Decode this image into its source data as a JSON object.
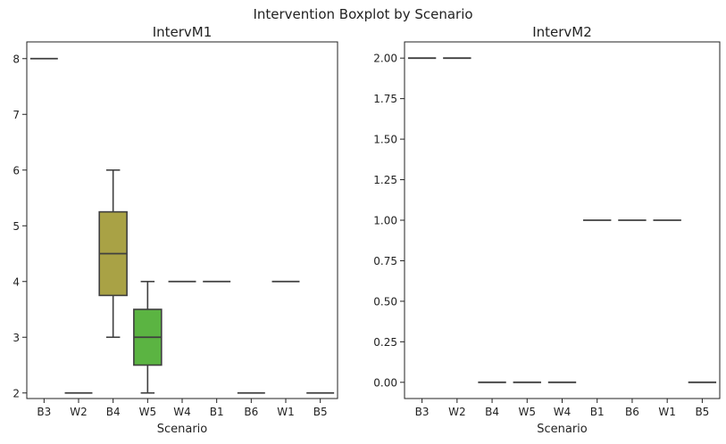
{
  "figure_title": "Intervention Boxplot by Scenario",
  "chart_data": [
    {
      "type": "box",
      "title": "IntervM1",
      "xlabel": "Scenario",
      "ylabel": "",
      "categories": [
        "B3",
        "W2",
        "B4",
        "W5",
        "W4",
        "B1",
        "B6",
        "W1",
        "B5"
      ],
      "colors": [
        "#3274a1",
        "#e1812c",
        "#a9a245",
        "#5bb442",
        "#4cad84",
        "#3ba3ec",
        "#a88bc0",
        "#cc7ab4",
        "#d66f80"
      ],
      "boxes": [
        {
          "category": "B3",
          "min": 8,
          "q1": 8,
          "median": 8,
          "q3": 8,
          "max": 8
        },
        {
          "category": "W2",
          "min": 2,
          "q1": 2,
          "median": 2,
          "q3": 2,
          "max": 2
        },
        {
          "category": "B4",
          "min": 3,
          "q1": 3.75,
          "median": 4.5,
          "q3": 5.25,
          "max": 6
        },
        {
          "category": "W5",
          "min": 2,
          "q1": 2.5,
          "median": 3,
          "q3": 3.5,
          "max": 4
        },
        {
          "category": "W4",
          "min": 4,
          "q1": 4,
          "median": 4,
          "q3": 4,
          "max": 4
        },
        {
          "category": "B1",
          "min": 4,
          "q1": 4,
          "median": 4,
          "q3": 4,
          "max": 4
        },
        {
          "category": "B6",
          "min": 2,
          "q1": 2,
          "median": 2,
          "q3": 2,
          "max": 2
        },
        {
          "category": "W1",
          "min": 4,
          "q1": 4,
          "median": 4,
          "q3": 4,
          "max": 4
        },
        {
          "category": "B5",
          "min": 2,
          "q1": 2,
          "median": 2,
          "q3": 2,
          "max": 2
        }
      ],
      "ylim": [
        1.9,
        8.3
      ],
      "yticks": [
        2,
        3,
        4,
        5,
        6,
        7,
        8
      ],
      "ytick_labels": [
        "2",
        "3",
        "4",
        "5",
        "6",
        "7",
        "8"
      ],
      "grid": false,
      "legend": "none"
    },
    {
      "type": "box",
      "title": "IntervM2",
      "xlabel": "Scenario",
      "ylabel": "",
      "categories": [
        "B3",
        "W2",
        "B4",
        "W5",
        "W4",
        "B1",
        "B6",
        "W1",
        "B5"
      ],
      "colors": [
        "#3274a1",
        "#e1812c",
        "#3a923a",
        "#c03d3e",
        "#9372b2",
        "#845b53",
        "#d684bd",
        "#7f7f7f",
        "#a9aa35"
      ],
      "boxes": [
        {
          "category": "B3",
          "min": 2,
          "q1": 2,
          "median": 2,
          "q3": 2,
          "max": 2
        },
        {
          "category": "W2",
          "min": 2,
          "q1": 2,
          "median": 2,
          "q3": 2,
          "max": 2
        },
        {
          "category": "B4",
          "min": 0,
          "q1": 0,
          "median": 0,
          "q3": 0,
          "max": 0
        },
        {
          "category": "W5",
          "min": 0,
          "q1": 0,
          "median": 0,
          "q3": 0,
          "max": 0
        },
        {
          "category": "W4",
          "min": 0,
          "q1": 0,
          "median": 0,
          "q3": 0,
          "max": 0
        },
        {
          "category": "B1",
          "min": 1,
          "q1": 1,
          "median": 1,
          "q3": 1,
          "max": 1
        },
        {
          "category": "B6",
          "min": 1,
          "q1": 1,
          "median": 1,
          "q3": 1,
          "max": 1
        },
        {
          "category": "W1",
          "min": 1,
          "q1": 1,
          "median": 1,
          "q3": 1,
          "max": 1
        },
        {
          "category": "B5",
          "min": 0,
          "q1": 0,
          "median": 0,
          "q3": 0,
          "max": 0
        }
      ],
      "ylim": [
        -0.1,
        2.1
      ],
      "yticks": [
        0,
        0.25,
        0.5,
        0.75,
        1,
        1.25,
        1.5,
        1.75,
        2
      ],
      "ytick_labels": [
        "0.00",
        "0.25",
        "0.50",
        "0.75",
        "1.00",
        "1.25",
        "1.50",
        "1.75",
        "2.00"
      ],
      "grid": false,
      "legend": "none"
    }
  ]
}
